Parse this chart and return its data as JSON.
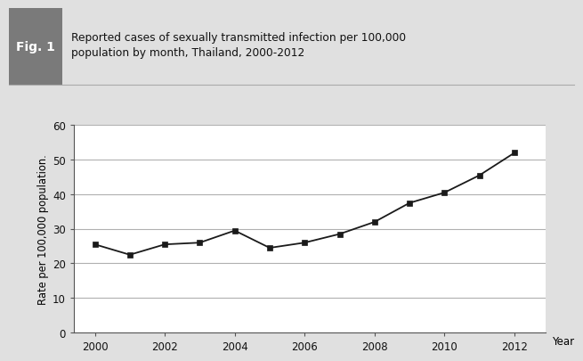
{
  "years": [
    2000,
    2001,
    2002,
    2003,
    2004,
    2005,
    2006,
    2007,
    2008,
    2009,
    2010,
    2011,
    2012
  ],
  "values": [
    25.5,
    22.5,
    25.5,
    26.0,
    29.5,
    24.5,
    26.0,
    28.5,
    32.0,
    37.5,
    40.5,
    45.5,
    52.0
  ],
  "xlabel": "Year",
  "ylabel": "Rate per 100,000 population.",
  "ylim": [
    0,
    60
  ],
  "yticks": [
    0,
    10,
    20,
    30,
    40,
    50,
    60
  ],
  "xlim": [
    1999.4,
    2012.9
  ],
  "xticks": [
    2000,
    2002,
    2004,
    2006,
    2008,
    2010,
    2012
  ],
  "title_fig_label": "Fig. 1",
  "title_text": "Reported cases of sexually transmitted infection per 100,000\npopulation by month, Thailand, 2000-2012",
  "line_color": "#1a1a1a",
  "marker_color": "#1a1a1a",
  "header_bg_color": "#d0d0d0",
  "fig_label_bg_color": "#7a7a7a",
  "fig_label_text_color": "#ffffff",
  "plot_bg_color": "#ffffff",
  "outer_bg_color": "#e0e0e0",
  "grid_color": "#b0b0b0",
  "spine_color": "#555555"
}
